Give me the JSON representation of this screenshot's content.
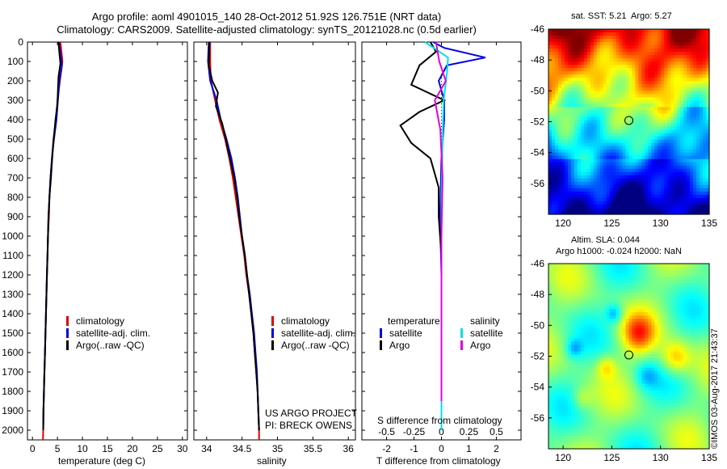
{
  "header": {
    "line1": "Argo profile: aoml 4901015_140 28-Oct-2012 51.92S 126.751E (NRT data)",
    "line2": "Climatology: CARS2009. Satellite-adjusted climatology: synTS_20121028.nc (0.5d earlier)"
  },
  "colors": {
    "climatology": "#e00000",
    "satellite": "#0000e0",
    "argo": "#000000",
    "salinity_sat": "#00e0e0",
    "salinity_argo": "#e000e0"
  },
  "chart_data": [
    {
      "type": "line",
      "xlabel": "temperature (deg C)",
      "ylabel": "",
      "xlim": [
        -1,
        31
      ],
      "ylim": [
        2050,
        0
      ],
      "xticks": [
        0,
        5,
        10,
        15,
        20,
        25,
        30
      ],
      "yticks": [
        0,
        100,
        200,
        300,
        400,
        500,
        600,
        700,
        800,
        900,
        1000,
        1100,
        1200,
        1300,
        1400,
        1500,
        1600,
        1700,
        1800,
        1900,
        2000
      ],
      "series": [
        {
          "name": "climatology",
          "color": "#e00000",
          "points": [
            [
              5.6,
              0
            ],
            [
              5.8,
              50
            ],
            [
              6.0,
              100
            ],
            [
              5.5,
              200
            ],
            [
              5.0,
              300
            ],
            [
              4.7,
              400
            ],
            [
              4.2,
              500
            ],
            [
              3.9,
              600
            ],
            [
              3.6,
              700
            ],
            [
              3.4,
              800
            ],
            [
              3.3,
              900
            ],
            [
              3.1,
              1000
            ],
            [
              3.0,
              1100
            ],
            [
              2.9,
              1200
            ],
            [
              2.8,
              1300
            ],
            [
              2.7,
              1400
            ],
            [
              2.6,
              1500
            ],
            [
              2.5,
              1600
            ],
            [
              2.4,
              1700
            ],
            [
              2.3,
              1800
            ],
            [
              2.2,
              1900
            ],
            [
              2.15,
              2000
            ],
            [
              2.1,
              2050
            ]
          ]
        },
        {
          "name": "satellite-adj. clim.",
          "color": "#0000e0",
          "points": [
            [
              5.3,
              0
            ],
            [
              5.7,
              80
            ],
            [
              5.9,
              120
            ],
            [
              5.4,
              200
            ],
            [
              5.1,
              300
            ],
            [
              4.8,
              400
            ],
            [
              4.3,
              500
            ],
            [
              3.9,
              600
            ],
            [
              3.6,
              700
            ],
            [
              3.4,
              800
            ],
            [
              3.2,
              900
            ],
            [
              3.1,
              1000
            ],
            [
              3.0,
              1100
            ],
            [
              2.9,
              1200
            ],
            [
              2.8,
              1300
            ],
            [
              2.7,
              1400
            ],
            [
              2.6,
              1500
            ],
            [
              2.5,
              1600
            ],
            [
              2.4,
              1700
            ],
            [
              2.3,
              1800
            ],
            [
              2.2,
              1900
            ],
            [
              2.15,
              2000
            ]
          ]
        },
        {
          "name": "Argo(..raw -QC)",
          "color": "#000000",
          "points": [
            [
              5.2,
              0
            ],
            [
              5.4,
              60
            ],
            [
              5.6,
              110
            ],
            [
              5.2,
              180
            ],
            [
              5.1,
              250
            ],
            [
              5.0,
              320
            ],
            [
              4.6,
              400
            ],
            [
              4.4,
              460
            ],
            [
              4.1,
              540
            ],
            [
              3.9,
              620
            ],
            [
              3.7,
              700
            ],
            [
              3.4,
              800
            ],
            [
              3.2,
              900
            ],
            [
              3.1,
              1000
            ],
            [
              3.0,
              1100
            ],
            [
              2.9,
              1200
            ],
            [
              2.8,
              1300
            ],
            [
              2.7,
              1400
            ],
            [
              2.6,
              1500
            ],
            [
              2.5,
              1600
            ],
            [
              2.4,
              1700
            ],
            [
              2.3,
              1800
            ],
            [
              2.2,
              1900
            ],
            [
              2.15,
              2000
            ]
          ]
        }
      ],
      "legend": {
        "placement": "lower-middle",
        "entries": [
          "climatology",
          "satellite-adj. clim.",
          "Argo(..raw -QC)"
        ]
      }
    },
    {
      "type": "line",
      "xlabel": "salinity",
      "xlim": [
        33.82,
        36.1
      ],
      "ylim": [
        2050,
        0
      ],
      "xticks": [
        34,
        34.5,
        35,
        35.5,
        36
      ],
      "series": [
        {
          "name": "climatology",
          "color": "#e00000",
          "points": [
            [
              34.05,
              0
            ],
            [
              34.05,
              100
            ],
            [
              34.06,
              200
            ],
            [
              34.12,
              300
            ],
            [
              34.18,
              400
            ],
            [
              34.26,
              500
            ],
            [
              34.32,
              600
            ],
            [
              34.37,
              700
            ],
            [
              34.41,
              800
            ],
            [
              34.45,
              900
            ],
            [
              34.49,
              1000
            ],
            [
              34.53,
              1100
            ],
            [
              34.56,
              1200
            ],
            [
              34.6,
              1300
            ],
            [
              34.63,
              1400
            ],
            [
              34.66,
              1500
            ],
            [
              34.68,
              1600
            ],
            [
              34.7,
              1700
            ],
            [
              34.72,
              1800
            ],
            [
              34.73,
              1900
            ],
            [
              34.74,
              2000
            ],
            [
              34.74,
              2050
            ]
          ]
        },
        {
          "name": "satellite-adj. clim.",
          "color": "#0000e0",
          "points": [
            [
              34.03,
              0
            ],
            [
              34.02,
              100
            ],
            [
              34.05,
              200
            ],
            [
              34.14,
              300
            ],
            [
              34.2,
              400
            ],
            [
              34.28,
              500
            ],
            [
              34.35,
              600
            ],
            [
              34.4,
              700
            ],
            [
              34.44,
              800
            ],
            [
              34.47,
              900
            ],
            [
              34.5,
              1000
            ],
            [
              34.54,
              1100
            ],
            [
              34.57,
              1200
            ],
            [
              34.61,
              1300
            ],
            [
              34.64,
              1400
            ],
            [
              34.67,
              1500
            ],
            [
              34.69,
              1600
            ],
            [
              34.71,
              1700
            ],
            [
              34.72,
              1800
            ],
            [
              34.73,
              1900
            ],
            [
              34.74,
              2000
            ]
          ]
        },
        {
          "name": "Argo(..raw -QC)",
          "color": "#000000",
          "points": [
            [
              34.04,
              0
            ],
            [
              34.03,
              120
            ],
            [
              34.08,
              200
            ],
            [
              34.16,
              260
            ],
            [
              34.13,
              330
            ],
            [
              34.22,
              420
            ],
            [
              34.27,
              500
            ],
            [
              34.33,
              600
            ],
            [
              34.39,
              700
            ],
            [
              34.43,
              800
            ],
            [
              34.46,
              900
            ],
            [
              34.5,
              1000
            ],
            [
              34.54,
              1100
            ],
            [
              34.57,
              1200
            ],
            [
              34.6,
              1300
            ],
            [
              34.63,
              1400
            ],
            [
              34.66,
              1500
            ],
            [
              34.68,
              1600
            ],
            [
              34.7,
              1700
            ],
            [
              34.72,
              1800
            ],
            [
              34.73,
              1900
            ],
            [
              34.74,
              2000
            ]
          ]
        }
      ],
      "legend": {
        "placement": "lower-middle",
        "entries": [
          "climatology",
          "satellite-adj. clim.",
          "Argo(..raw -QC)"
        ]
      },
      "annotations": [
        "US ARGO PROJECT",
        "PI: BRECK OWENS"
      ]
    },
    {
      "type": "line",
      "xlabel": "T difference from climatology",
      "x2label": "S difference from climatology",
      "xlim": [
        -2.9,
        2.9
      ],
      "x2lim": [
        -0.725,
        0.725
      ],
      "ylim": [
        2050,
        0
      ],
      "xticks": [
        -2,
        -1,
        0,
        1,
        2
      ],
      "x2ticks": [
        "-0.5",
        "-0.25",
        "0",
        "0.25",
        "0.5"
      ],
      "x2tickvalues": [
        -0.5,
        -0.25,
        0,
        0.25,
        0.5
      ],
      "series": [
        {
          "name": "temperature satellite",
          "color": "#0000e0",
          "points": [
            [
              -0.3,
              0
            ],
            [
              0.1,
              30
            ],
            [
              1.6,
              80
            ],
            [
              0.2,
              120
            ],
            [
              -0.1,
              200
            ],
            [
              0.1,
              300
            ],
            [
              0.1,
              400
            ],
            [
              0.0,
              600
            ],
            [
              -0.05,
              900
            ],
            [
              0.0,
              1200
            ],
            [
              0.0,
              1500
            ],
            [
              0.0,
              1800
            ],
            [
              0.0,
              1900
            ]
          ]
        },
        {
          "name": "temperature Argo",
          "color": "#000000",
          "points": [
            [
              -0.4,
              0
            ],
            [
              -0.2,
              50
            ],
            [
              -0.8,
              120
            ],
            [
              -1.1,
              220
            ],
            [
              0.1,
              300
            ],
            [
              -0.8,
              360
            ],
            [
              -1.5,
              430
            ],
            [
              -1.1,
              520
            ],
            [
              -0.4,
              600
            ],
            [
              -0.1,
              750
            ],
            [
              -0.1,
              900
            ],
            [
              0.0,
              1100
            ],
            [
              0.0,
              1400
            ],
            [
              0.0,
              1700
            ],
            [
              0.0,
              1900
            ]
          ]
        },
        {
          "name": "salinity satellite",
          "color": "#00e0e0",
          "points": [
            [
              -0.15,
              0
            ],
            [
              0.06,
              80
            ],
            [
              0.05,
              160
            ],
            [
              0.02,
              300
            ],
            [
              0.01,
              500
            ],
            [
              0.0,
              800
            ],
            [
              0.0,
              1200
            ],
            [
              0.0,
              1600
            ],
            [
              0.0,
              2000
            ]
          ]
        },
        {
          "name": "salinity Argo",
          "color": "#e000e0",
          "points": [
            [
              -0.05,
              0
            ],
            [
              -0.02,
              100
            ],
            [
              0.04,
              200
            ],
            [
              -0.06,
              300
            ],
            [
              -0.01,
              450
            ],
            [
              0.01,
              700
            ],
            [
              0.0,
              1000
            ],
            [
              0.0,
              1500
            ],
            [
              0.0,
              1850
            ]
          ]
        }
      ],
      "legend": {
        "groups": [
          {
            "title": "temperature",
            "entries": [
              {
                "label": "satellite",
                "color": "#0000e0"
              },
              {
                "label": "Argo",
                "color": "#000000"
              }
            ]
          },
          {
            "title": "salinity",
            "entries": [
              {
                "label": "satellite",
                "color": "#00e0e0"
              },
              {
                "label": "Argo",
                "color": "#e000e0"
              }
            ]
          }
        ]
      }
    },
    {
      "type": "heatmap",
      "title": "sat. SST: 5.21  Argo: 5.27",
      "xlim": [
        118.5,
        135
      ],
      "ylim": [
        -58,
        -46
      ],
      "xticks": [
        120,
        125,
        130,
        135
      ],
      "yticks": [
        -46,
        -48,
        -50,
        -52,
        -54,
        -56
      ],
      "marker": {
        "lon": 126.751,
        "lat": -51.92
      }
    },
    {
      "type": "heatmap",
      "title": "Altim. SLA: 0.044",
      "subtitle": "Argo h1000: -0.024 h2000: NaN",
      "xlim": [
        118.5,
        135
      ],
      "ylim": [
        -58,
        -46
      ],
      "xticks": [
        120,
        125,
        130,
        135
      ],
      "yticks": [
        -46,
        -48,
        -50,
        -52,
        -54,
        -56
      ],
      "marker": {
        "lon": 126.751,
        "lat": -51.92
      }
    }
  ],
  "stamp": "©IMOS 03-Aug-2017 21:43:37"
}
